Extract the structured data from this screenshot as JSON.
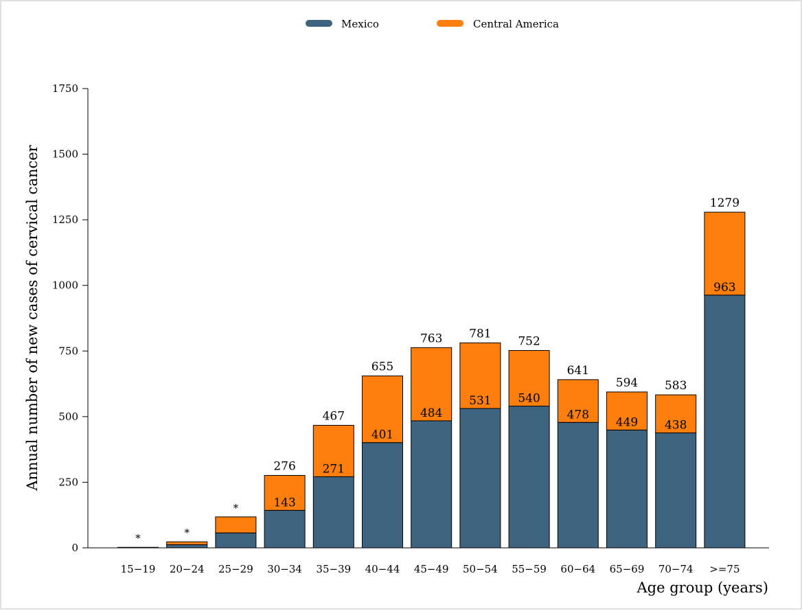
{
  "chart_data": {
    "type": "bar",
    "stacked": true,
    "categories": [
      "15−19",
      "20−24",
      "25−29",
      "30−34",
      "35−39",
      "40−44",
      "45−49",
      "50−54",
      "55−59",
      "60−64",
      "65−69",
      "70−74",
      ">=75"
    ],
    "series": [
      {
        "name": "Mexico",
        "color": "#3f647f",
        "values": [
          1,
          12,
          57,
          143,
          271,
          401,
          484,
          531,
          540,
          478,
          449,
          438,
          963
        ]
      },
      {
        "name": "Central America",
        "color": "#ff7f0e",
        "values": [
          1,
          11,
          61,
          133,
          196,
          254,
          279,
          250,
          212,
          163,
          145,
          145,
          316
        ]
      }
    ],
    "inner_labels": [
      "",
      "",
      "",
      "143",
      "271",
      "401",
      "484",
      "531",
      "540",
      "478",
      "449",
      "438",
      "963"
    ],
    "top_labels": [
      "*",
      "*",
      "*",
      "276",
      "467",
      "655",
      "763",
      "781",
      "752",
      "641",
      "594",
      "583",
      "1279"
    ],
    "xlabel": "Age group (years)",
    "ylabel": "Annual number of new cases of cervical cancer",
    "ylim": [
      0,
      1750
    ],
    "yticks": [
      0,
      250,
      500,
      750,
      1000,
      1250,
      1500,
      1750
    ],
    "legend_position": "top-center",
    "grid": false
  }
}
